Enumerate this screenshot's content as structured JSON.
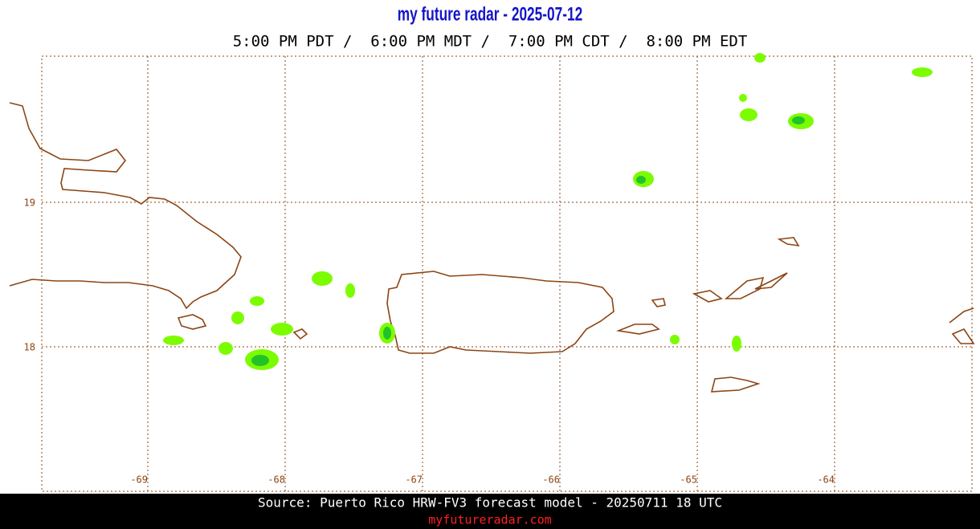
{
  "header": {
    "title": "my future radar - 2025-07-12",
    "times": "5:00 PM PDT /  6:00 PM MDT /  7:00 PM CDT /  8:00 PM EDT"
  },
  "map": {
    "lat_labels": [
      "19",
      "18"
    ],
    "lon_labels": [
      "-69",
      "-68",
      "-67",
      "-66",
      "-65",
      "-64"
    ]
  },
  "footer": {
    "source": "Source: Puerto Rico HRW-FV3 forecast model - 20250711 18 UTC",
    "site": "myfutureradar.com"
  }
}
